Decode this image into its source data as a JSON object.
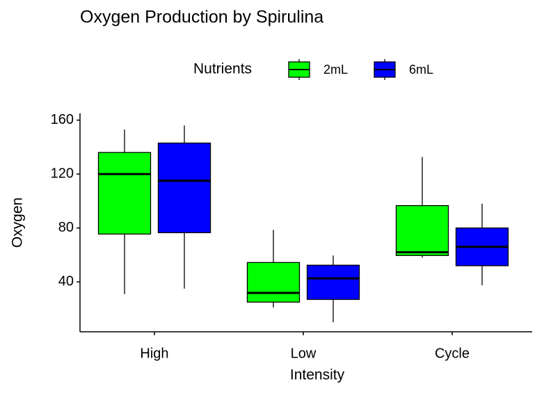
{
  "chart_data": {
    "type": "box",
    "title": "Oxygen Production by Spirulina",
    "x_label": "Intensity",
    "y_label": "Oxygen",
    "legend_title": "Nutrients",
    "legend_position": "top",
    "categories": [
      "High",
      "Low",
      "Cycle"
    ],
    "series": [
      {
        "name": "2mL",
        "color": "#00ff00",
        "values": [
          {
            "min": 31,
            "q1": 75.5,
            "median": 120,
            "q3": 136,
            "max": 153
          },
          {
            "min": 21,
            "q1": 25,
            "median": 31.8,
            "q3": 54.4,
            "max": 78.6
          },
          {
            "min": 58,
            "q1": 59.6,
            "median": 62,
            "q3": 96.6,
            "max": 132.7
          }
        ]
      },
      {
        "name": "6mL",
        "color": "#0000ff",
        "values": [
          {
            "min": 35,
            "q1": 76.5,
            "median": 115,
            "q3": 143,
            "max": 156
          },
          {
            "min": 10,
            "q1": 27,
            "median": 42.6,
            "q3": 52.4,
            "max": 59.6
          },
          {
            "min": 37.5,
            "q1": 52,
            "median": 66,
            "q3": 80,
            "max": 98
          }
        ]
      }
    ],
    "ylim": [
      3,
      165
    ],
    "yticks": [
      40,
      80,
      120,
      160
    ],
    "grid": false
  }
}
